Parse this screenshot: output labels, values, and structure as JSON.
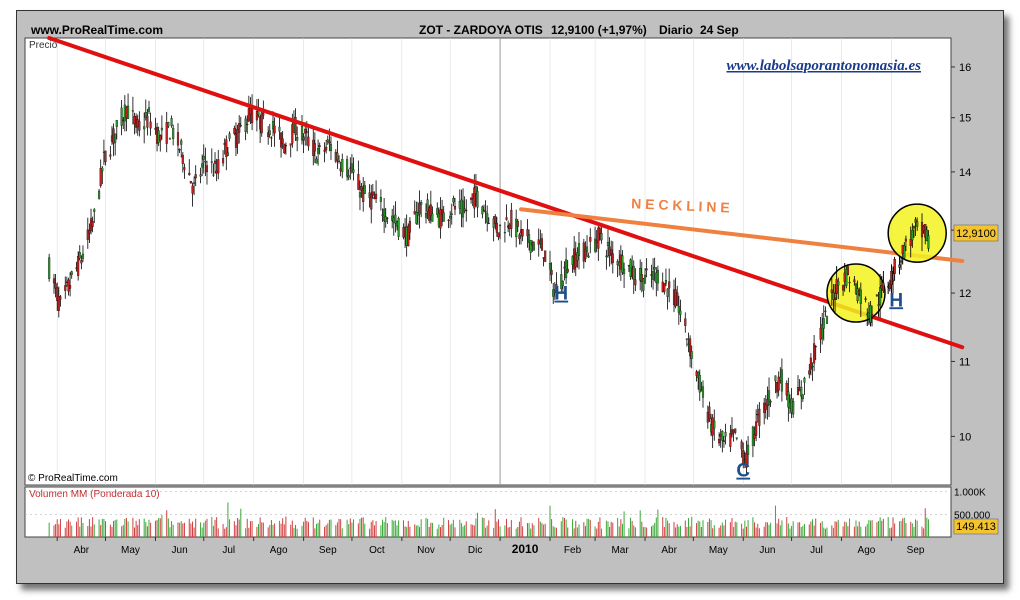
{
  "header": {
    "source": "www.ProRealTime.com",
    "ticker": "ZOT - ZARDOYA OTIS",
    "price_change": "12,9100 (+1,97%)",
    "period": "Diario",
    "date": "24 Sep"
  },
  "watermark": "www.labolsaporantonomasia.es",
  "copyright": "© ProRealTime.com",
  "chart_data": {
    "type": "candlestick",
    "price_panel_label": "Precio",
    "volume_panel_label": "Volumen MM (Ponderada 10)",
    "y_ticks": [
      "16",
      "15",
      "14",
      "13",
      "12",
      "11",
      "10"
    ],
    "y_log_scale": true,
    "y_range": [
      9.4,
      16.6
    ],
    "volume_ticks": [
      "1.000K",
      "500.000"
    ],
    "volume_range": [
      0,
      1100000
    ],
    "last_price_label": "12,9100",
    "last_volume_label": "149.413",
    "last_price": 12.91,
    "last_volume": 149413,
    "x_tick_labels": [
      "Abr",
      "May",
      "Jun",
      "Jul",
      "Ago",
      "Sep",
      "Oct",
      "Nov",
      "Dic",
      "2010",
      "Feb",
      "Mar",
      "Abr",
      "May",
      "Jun",
      "Jul",
      "Ago",
      "Sep"
    ],
    "price_path": [
      [
        "2009-03-27",
        12.4
      ],
      [
        "2009-04-03",
        11.8
      ],
      [
        "2009-04-10",
        12.2
      ],
      [
        "2009-04-17",
        12.6
      ],
      [
        "2009-04-24",
        13.2
      ],
      [
        "2009-04-30",
        14.2
      ],
      [
        "2009-05-07",
        14.7
      ],
      [
        "2009-05-14",
        15.2
      ],
      [
        "2009-05-21",
        14.8
      ],
      [
        "2009-05-28",
        15.0
      ],
      [
        "2009-06-04",
        14.6
      ],
      [
        "2009-06-11",
        14.8
      ],
      [
        "2009-06-18",
        14.3
      ],
      [
        "2009-06-25",
        13.7
      ],
      [
        "2009-07-02",
        14.2
      ],
      [
        "2009-07-09",
        14.0
      ],
      [
        "2009-07-16",
        14.5
      ],
      [
        "2009-07-23",
        14.7
      ],
      [
        "2009-07-30",
        15.1
      ],
      [
        "2009-08-06",
        14.9
      ],
      [
        "2009-08-13",
        14.8
      ],
      [
        "2009-08-20",
        14.5
      ],
      [
        "2009-08-27",
        14.8
      ],
      [
        "2009-09-03",
        14.6
      ],
      [
        "2009-09-10",
        14.3
      ],
      [
        "2009-09-17",
        14.5
      ],
      [
        "2009-09-24",
        14.2
      ],
      [
        "2009-10-01",
        14.0
      ],
      [
        "2009-10-08",
        13.6
      ],
      [
        "2009-10-15",
        13.5
      ],
      [
        "2009-10-22",
        13.3
      ],
      [
        "2009-10-29",
        13.1
      ],
      [
        "2009-11-05",
        12.9
      ],
      [
        "2009-11-12",
        13.4
      ],
      [
        "2009-11-19",
        13.3
      ],
      [
        "2009-11-26",
        13.2
      ],
      [
        "2009-12-03",
        13.4
      ],
      [
        "2009-12-10",
        13.3
      ],
      [
        "2009-12-17",
        13.6
      ],
      [
        "2009-12-24",
        13.3
      ],
      [
        "2009-12-31",
        13.0
      ],
      [
        "2010-01-07",
        13.2
      ],
      [
        "2010-01-14",
        12.9
      ],
      [
        "2010-01-21",
        12.8
      ],
      [
        "2010-01-28",
        12.7
      ],
      [
        "2010-02-04",
        12.0
      ],
      [
        "2010-02-11",
        12.4
      ],
      [
        "2010-02-18",
        12.6
      ],
      [
        "2010-02-25",
        12.7
      ],
      [
        "2010-03-04",
        12.9
      ],
      [
        "2010-03-11",
        12.6
      ],
      [
        "2010-03-18",
        12.5
      ],
      [
        "2010-03-25",
        12.3
      ],
      [
        "2010-04-01",
        12.2
      ],
      [
        "2010-04-08",
        12.3
      ],
      [
        "2010-04-15",
        12.1
      ],
      [
        "2010-04-22",
        11.8
      ],
      [
        "2010-04-29",
        11.2
      ],
      [
        "2010-05-06",
        10.6
      ],
      [
        "2010-05-13",
        10.1
      ],
      [
        "2010-05-20",
        9.9
      ],
      [
        "2010-05-27",
        10.0
      ],
      [
        "2010-06-03",
        9.7
      ],
      [
        "2010-06-10",
        10.2
      ],
      [
        "2010-06-17",
        10.5
      ],
      [
        "2010-06-24",
        10.8
      ],
      [
        "2010-07-01",
        10.4
      ],
      [
        "2010-07-08",
        10.6
      ],
      [
        "2010-07-15",
        11.1
      ],
      [
        "2010-07-22",
        11.6
      ],
      [
        "2010-07-29",
        12.1
      ],
      [
        "2010-08-05",
        12.3
      ],
      [
        "2010-08-12",
        12.0
      ],
      [
        "2010-08-19",
        11.7
      ],
      [
        "2010-08-26",
        12.0
      ],
      [
        "2010-09-02",
        12.3
      ],
      [
        "2010-09-09",
        12.7
      ],
      [
        "2010-09-16",
        13.0
      ],
      [
        "2010-09-24",
        12.91
      ]
    ],
    "annotations": {
      "trendline": {
        "start": [
          "2009-03-27",
          16.6
        ],
        "end": [
          "2010-10-15",
          11.2
        ],
        "color": "#e01010"
      },
      "neckline": {
        "label": "N E C K   L I N E",
        "start": [
          "2010-01-14",
          13.35
        ],
        "end": [
          "2010-10-15",
          12.5
        ],
        "color": "#f08040"
      },
      "labels": [
        {
          "text": "H",
          "at": [
            "2010-02-08",
            11.9
          ]
        },
        {
          "text": "C",
          "at": [
            "2010-06-01",
            9.5
          ]
        },
        {
          "text": "H",
          "at": [
            "2010-09-04",
            11.8
          ]
        }
      ],
      "highlight_circles": [
        {
          "center": [
            "2010-08-10",
            12.0
          ]
        },
        {
          "center": [
            "2010-09-17",
            12.95
          ]
        }
      ]
    }
  }
}
